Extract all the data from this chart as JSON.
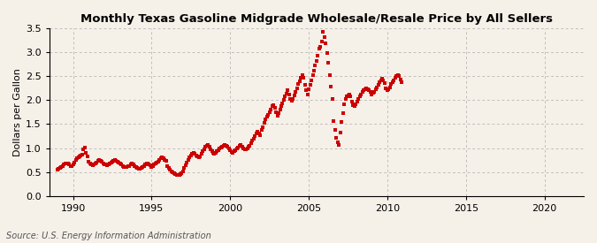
{
  "title": "Monthly Texas Gasoline Midgrade Wholesale/Resale Price by All Sellers",
  "ylabel": "Dollars per Gallon",
  "source": "Source: U.S. Energy Information Administration",
  "background_color": "#f5f0e8",
  "marker_color": "#cc0000",
  "marker": "s",
  "markersize": 2.5,
  "xlim": [
    1988.5,
    2022.5
  ],
  "ylim": [
    0.0,
    3.5
  ],
  "yticks": [
    0.0,
    0.5,
    1.0,
    1.5,
    2.0,
    2.5,
    3.0,
    3.5
  ],
  "xticks": [
    1990,
    1995,
    2000,
    2005,
    2010,
    2015,
    2020
  ],
  "grid_color": "#aaaaaa",
  "start_year": 1989,
  "start_month": 1,
  "prices": [
    0.55,
    0.57,
    0.59,
    0.6,
    0.63,
    0.65,
    0.67,
    0.68,
    0.67,
    0.65,
    0.63,
    0.62,
    0.65,
    0.7,
    0.75,
    0.78,
    0.8,
    0.82,
    0.85,
    0.87,
    0.98,
    1.01,
    0.9,
    0.82,
    0.72,
    0.68,
    0.65,
    0.64,
    0.66,
    0.68,
    0.7,
    0.73,
    0.75,
    0.73,
    0.71,
    0.68,
    0.66,
    0.65,
    0.64,
    0.65,
    0.67,
    0.69,
    0.72,
    0.74,
    0.76,
    0.74,
    0.72,
    0.7,
    0.67,
    0.65,
    0.63,
    0.61,
    0.6,
    0.61,
    0.62,
    0.63,
    0.65,
    0.67,
    0.65,
    0.63,
    0.6,
    0.58,
    0.57,
    0.56,
    0.58,
    0.6,
    0.63,
    0.65,
    0.67,
    0.68,
    0.66,
    0.64,
    0.6,
    0.62,
    0.65,
    0.67,
    0.7,
    0.72,
    0.75,
    0.78,
    0.8,
    0.78,
    0.76,
    0.74,
    0.62,
    0.58,
    0.55,
    0.52,
    0.5,
    0.47,
    0.45,
    0.44,
    0.44,
    0.44,
    0.45,
    0.47,
    0.52,
    0.58,
    0.64,
    0.7,
    0.76,
    0.8,
    0.85,
    0.88,
    0.9,
    0.88,
    0.85,
    0.82,
    0.8,
    0.83,
    0.88,
    0.93,
    0.98,
    1.02,
    1.05,
    1.07,
    1.03,
    0.98,
    0.94,
    0.9,
    0.88,
    0.9,
    0.93,
    0.96,
    0.99,
    1.01,
    1.03,
    1.05,
    1.07,
    1.05,
    1.02,
    1.0,
    0.95,
    0.92,
    0.9,
    0.93,
    0.96,
    0.99,
    1.01,
    1.04,
    1.06,
    1.03,
    1.0,
    0.98,
    0.97,
    0.99,
    1.02,
    1.05,
    1.1,
    1.15,
    1.2,
    1.25,
    1.3,
    1.35,
    1.3,
    1.26,
    1.38,
    1.44,
    1.52,
    1.6,
    1.65,
    1.7,
    1.75,
    1.8,
    1.88,
    1.9,
    1.83,
    1.75,
    1.68,
    1.72,
    1.8,
    1.87,
    1.93,
    2.0,
    2.07,
    2.14,
    2.2,
    2.12,
    2.03,
    1.98,
    2.03,
    2.1,
    2.18,
    2.25,
    2.33,
    2.4,
    2.47,
    2.52,
    2.47,
    2.32,
    2.2,
    2.12,
    2.22,
    2.32,
    2.42,
    2.52,
    2.62,
    2.72,
    2.82,
    2.92,
    3.07,
    3.12,
    3.22,
    3.43,
    3.32,
    3.18,
    2.98,
    2.78,
    2.52,
    2.28,
    2.02,
    1.57,
    1.38,
    1.22,
    1.12,
    1.07,
    1.33,
    1.55,
    1.73,
    1.92,
    2.02,
    2.07,
    2.1,
    2.12,
    2.07,
    1.97,
    1.9,
    1.87,
    1.92,
    1.97,
    2.02,
    2.07,
    2.12,
    2.17,
    2.2,
    2.22,
    2.24,
    2.22,
    2.2,
    2.17,
    2.12,
    2.15,
    2.18,
    2.22,
    2.27,
    2.32,
    2.38,
    2.42,
    2.45,
    2.42,
    2.35,
    2.25,
    2.2,
    2.22,
    2.27,
    2.33,
    2.38,
    2.42,
    2.47,
    2.5,
    2.52,
    2.5,
    2.43,
    2.38
  ]
}
